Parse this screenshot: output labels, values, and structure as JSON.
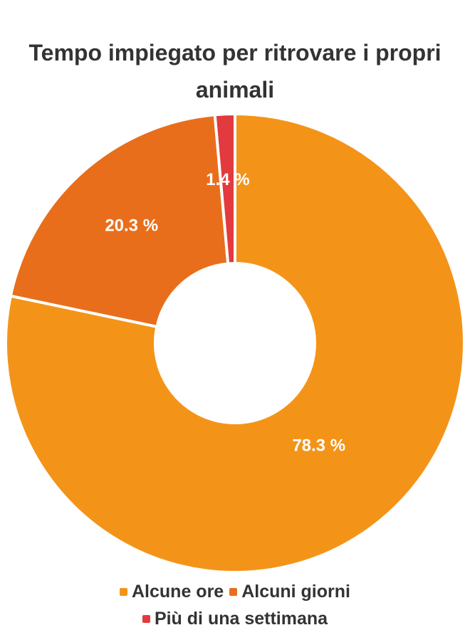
{
  "chart_data": {
    "type": "pie",
    "variant": "donut",
    "title": "Tempo impiegato per ritrovare i propri animali",
    "categories": [
      "Alcune ore",
      "Alcuni giorni",
      "Più di una settimana"
    ],
    "values": [
      78.3,
      20.3,
      1.4
    ],
    "data_labels": [
      "78.3 %",
      "20.3 %",
      "1.4 %"
    ],
    "colors": [
      "#F39419",
      "#E96E1B",
      "#E23A3E"
    ],
    "legend_position": "bottom"
  }
}
